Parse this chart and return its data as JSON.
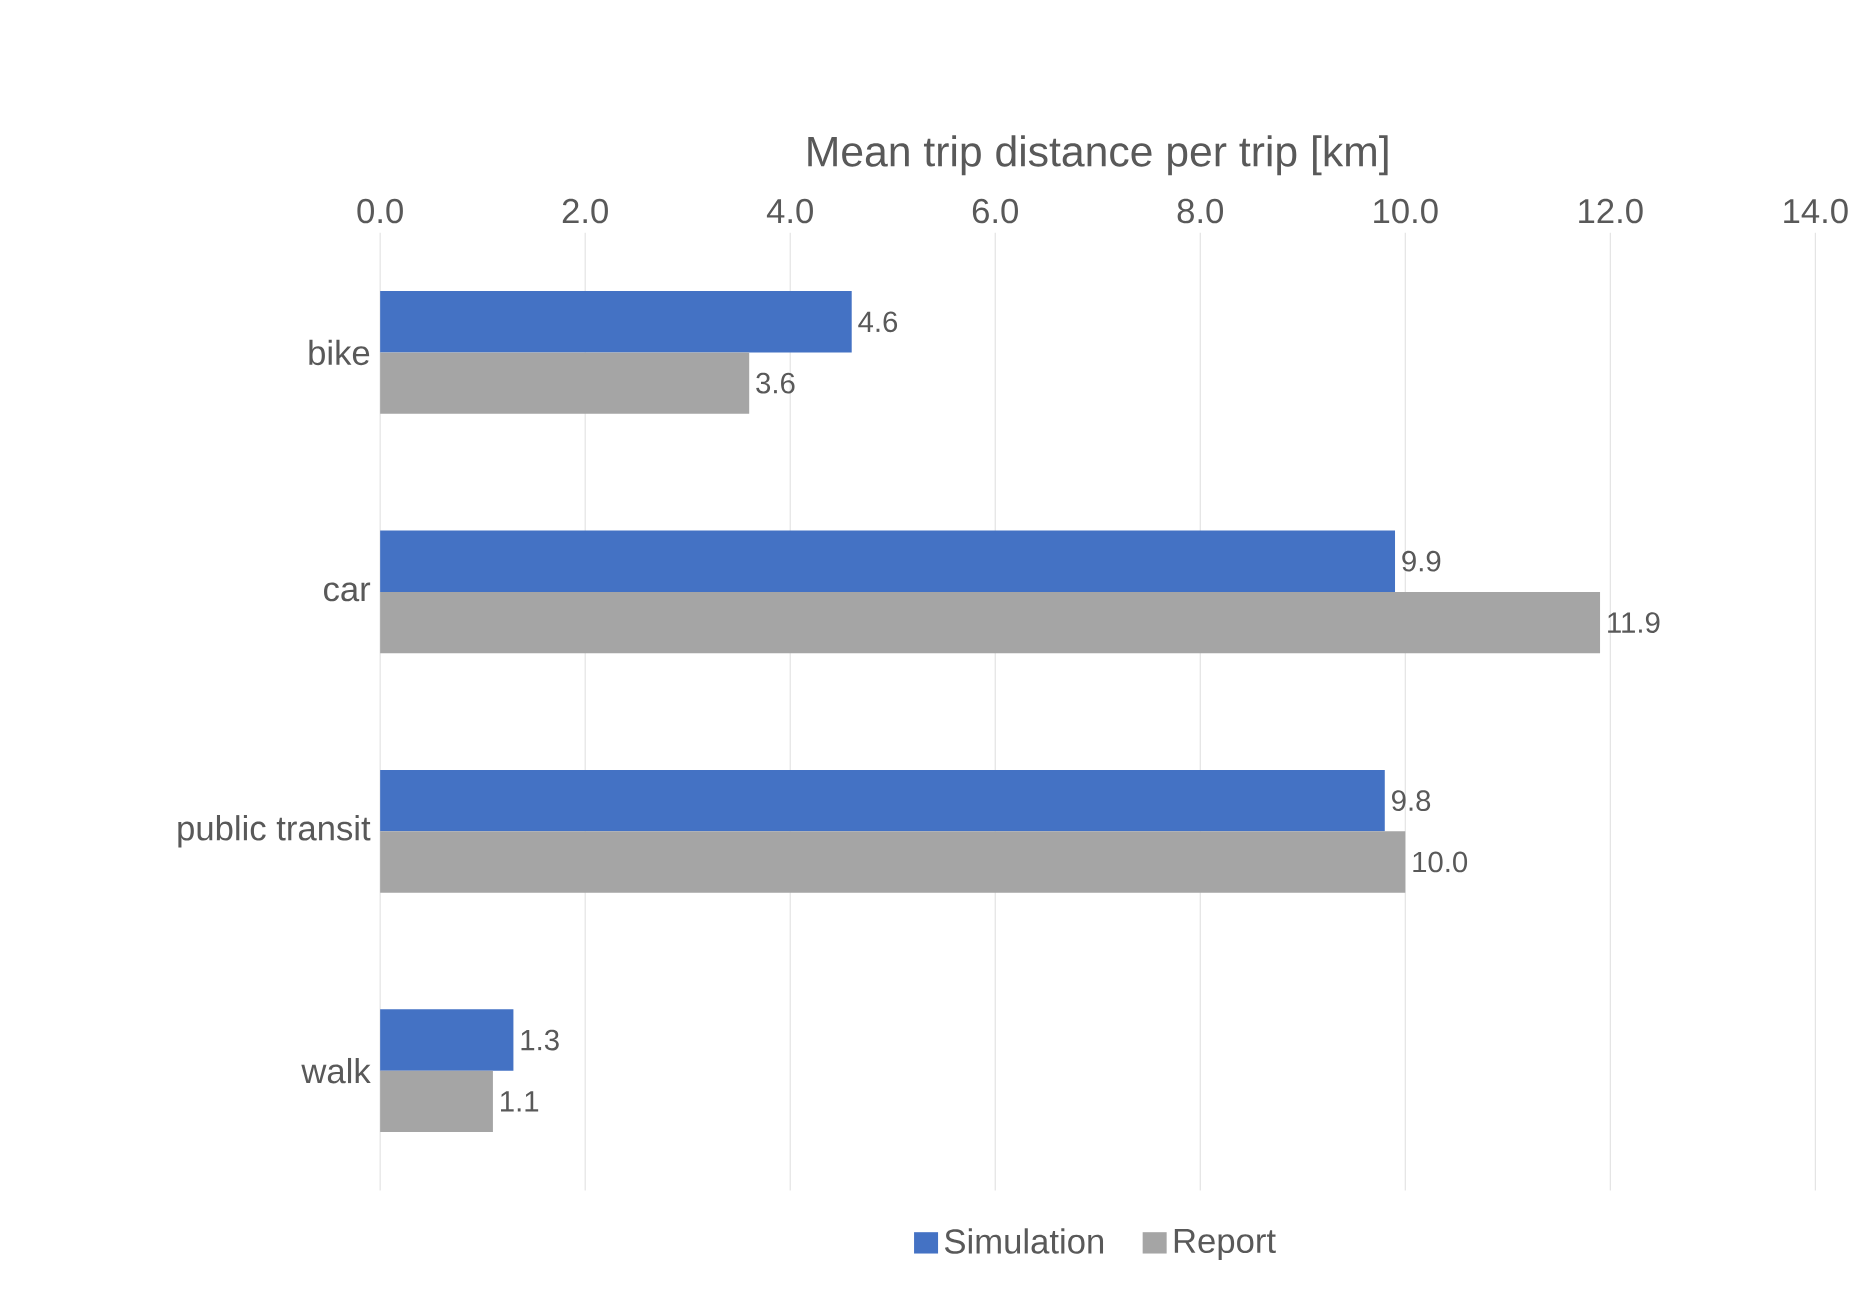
{
  "chart_data": {
    "type": "bar",
    "orientation": "horizontal",
    "xlabel": "Mean trip distance per trip [km]",
    "categories": [
      "bike",
      "car",
      "public transit",
      "walk"
    ],
    "series": [
      {
        "name": "Simulation",
        "color": "#4472c4",
        "values": [
          4.6,
          9.9,
          9.8,
          1.3
        ],
        "value_labels": [
          "4.6",
          "9.9",
          "9.8",
          "1.3"
        ]
      },
      {
        "name": "Report",
        "color": "#a5a5a5",
        "values": [
          3.6,
          11.9,
          10.0,
          1.1
        ],
        "value_labels": [
          "3.6",
          "11.9",
          "10.0",
          "1.1"
        ]
      }
    ],
    "xlim": [
      0,
      14
    ],
    "xticks": [
      {
        "value": 0,
        "label": "0.0"
      },
      {
        "value": 2,
        "label": "2.0"
      },
      {
        "value": 4,
        "label": "4.0"
      },
      {
        "value": 6,
        "label": "6.0"
      },
      {
        "value": 8,
        "label": "8.0"
      },
      {
        "value": 10,
        "label": "10.0"
      },
      {
        "value": 12,
        "label": "12.0"
      },
      {
        "value": 14,
        "label": "14.0"
      }
    ],
    "grid": "x",
    "legend": "bottom"
  }
}
